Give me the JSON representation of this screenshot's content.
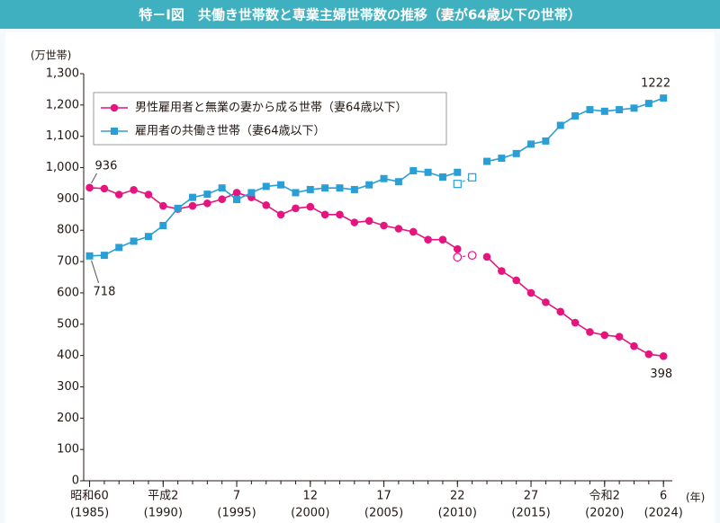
{
  "chart_data": {
    "type": "line",
    "title": "特－Ⅰ図　共働き世帯数と専業主婦世帯数の推移（妻が64歳以下の世帯）",
    "y_unit": "(万世帯)",
    "x_unit": "(年)",
    "x": [
      1985,
      1986,
      1987,
      1988,
      1989,
      1990,
      1991,
      1992,
      1993,
      1994,
      1995,
      1996,
      1997,
      1998,
      1999,
      2000,
      2001,
      2002,
      2003,
      2004,
      2005,
      2006,
      2007,
      2008,
      2009,
      2010,
      2011,
      2012,
      2013,
      2014,
      2015,
      2016,
      2017,
      2018,
      2019,
      2020,
      2021,
      2022,
      2023,
      2024
    ],
    "series": [
      {
        "name": "男性雇用者と無業の妻から成る世帯（妻64歳以下）",
        "color": "#e5147f",
        "marker": "circle",
        "values": [
          936,
          933,
          914,
          929,
          914,
          878,
          868,
          878,
          886,
          899,
          920,
          905,
          880,
          850,
          870,
          875,
          850,
          850,
          825,
          830,
          815,
          805,
          795,
          770,
          770,
          740,
          null,
          715,
          670,
          640,
          600,
          570,
          540,
          505,
          475,
          465,
          460,
          430,
          404,
          398
        ],
        "ref_values": [
          714,
          720
        ]
      },
      {
        "name": "雇用者の共働き世帯（妻64歳以下）",
        "color": "#2a9fd6",
        "marker": "square",
        "values": [
          718,
          720,
          745,
          765,
          780,
          815,
          870,
          905,
          915,
          935,
          898,
          920,
          940,
          945,
          920,
          930,
          935,
          935,
          930,
          945,
          965,
          955,
          990,
          985,
          970,
          985,
          null,
          1020,
          1030,
          1045,
          1075,
          1085,
          1135,
          1165,
          1185,
          1180,
          1185,
          1190,
          1205,
          1222
        ],
        "ref_values": [
          948,
          969
        ]
      }
    ],
    "ref_x": [
      2010,
      2011
    ],
    "xlim": [
      1984.6,
      2024.6
    ],
    "ylim": [
      0,
      1300
    ],
    "yticks": [
      0,
      100,
      200,
      300,
      400,
      500,
      600,
      700,
      800,
      900,
      {
        "value": 1000,
        "label": "1,000"
      },
      {
        "value": 1100,
        "label": "1,100"
      },
      {
        "value": 1200,
        "label": "1,200"
      },
      {
        "value": 1300,
        "label": "1,300"
      }
    ],
    "xticks": [
      {
        "value": 1985,
        "label": "昭和60",
        "year_label": "(1985)"
      },
      {
        "value": 1990,
        "label": "平成2",
        "year_label": "(1990)"
      },
      {
        "value": 1995,
        "label": "7",
        "year_label": "(1995)"
      },
      {
        "value": 2000,
        "label": "12",
        "year_label": "(2000)"
      },
      {
        "value": 2005,
        "label": "17",
        "year_label": "(2005)"
      },
      {
        "value": 2010,
        "label": "22",
        "year_label": "(2010)"
      },
      {
        "value": 2015,
        "label": "27",
        "year_label": "(2015)"
      },
      {
        "value": 2020,
        "label": "令和2",
        "year_label": "(2020)"
      },
      {
        "value": 2024,
        "label": "6",
        "year_label": "(2024)"
      }
    ],
    "value_labels": [
      {
        "value": 936,
        "label": "936"
      }
    ],
    "legend": "top-left"
  }
}
